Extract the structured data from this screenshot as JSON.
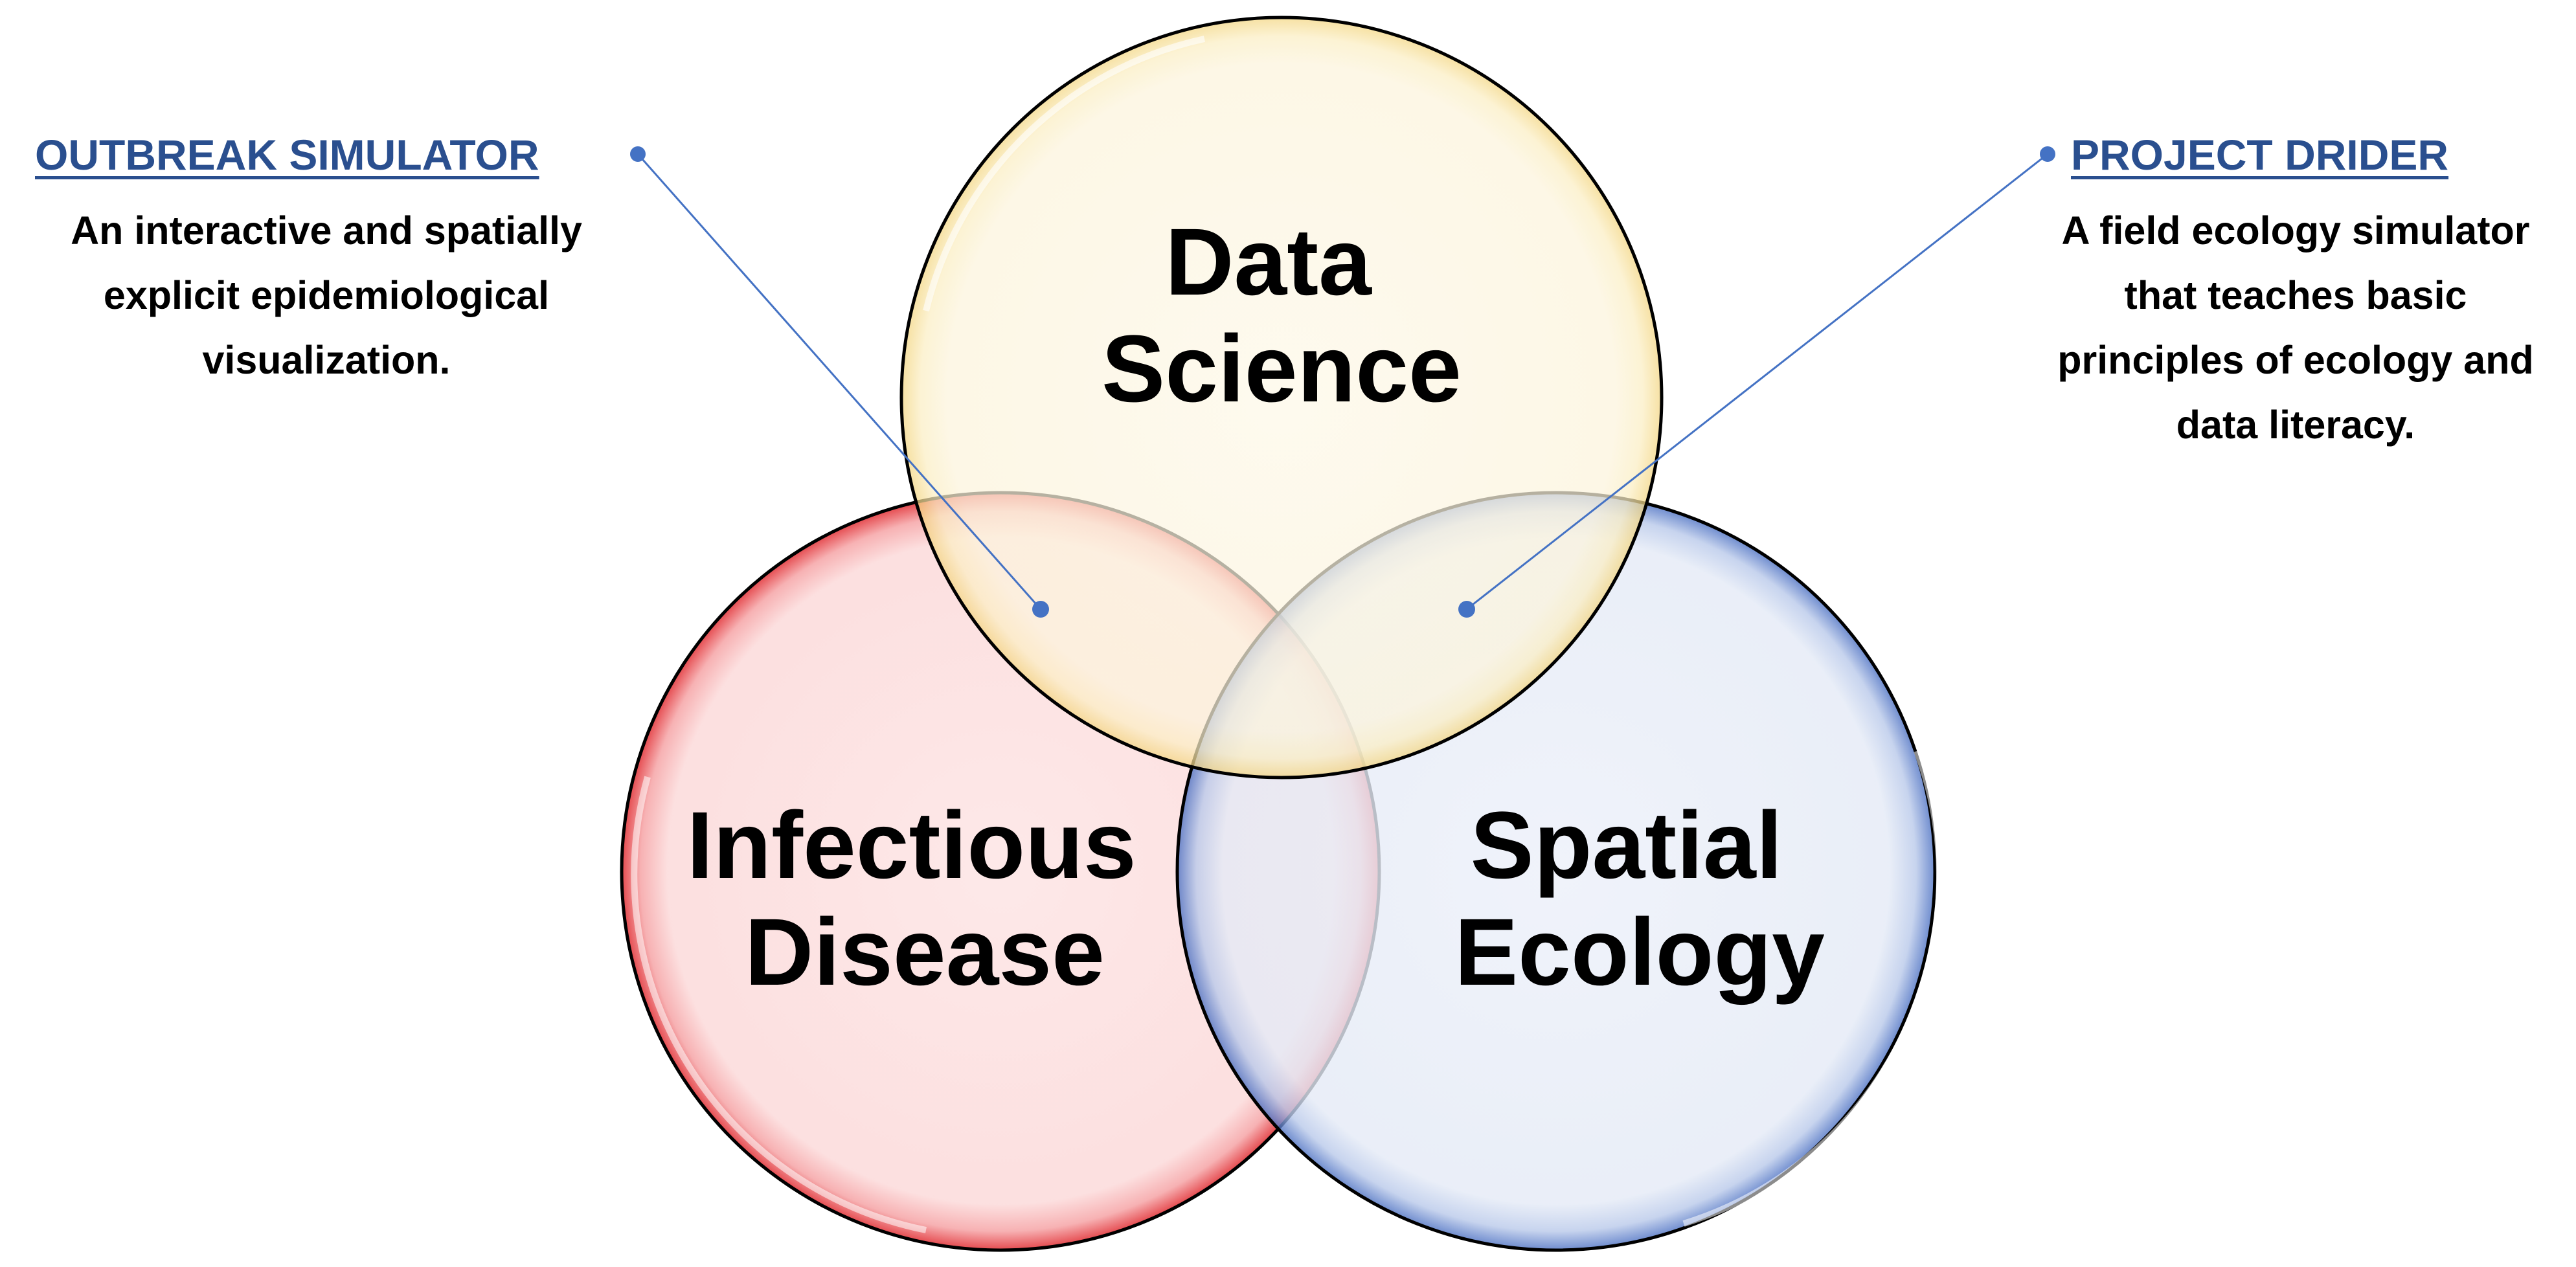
{
  "circles": [
    {
      "id": "data-science",
      "lines": [
        "Data",
        "Science"
      ],
      "fill": "#fdf7e3",
      "edge": "#f2d37a",
      "stroke": "#000000"
    },
    {
      "id": "infectious-disease",
      "lines": [
        "Infectious",
        "Disease"
      ],
      "fill": "#fce4e4",
      "edge": "#e2373c",
      "stroke": "#000000"
    },
    {
      "id": "spatial-ecology",
      "lines": [
        "Spatial",
        "Ecology"
      ],
      "fill": "#e9eef8",
      "edge": "#4a6fc2",
      "stroke": "#000000"
    }
  ],
  "callouts": {
    "left": {
      "title": "OUTBREAK SIMULATOR",
      "description": "An interactive and spatially\nexplicit epidemiological\nvisualization."
    },
    "right": {
      "title": "PROJECT DRIDER",
      "description": "A field ecology simulator\nthat teaches basic\nprinciples of ecology and\ndata literacy."
    }
  },
  "colors": {
    "title_text": "#2a4f8f",
    "connector": "#4472c4",
    "background": "#ffffff"
  }
}
